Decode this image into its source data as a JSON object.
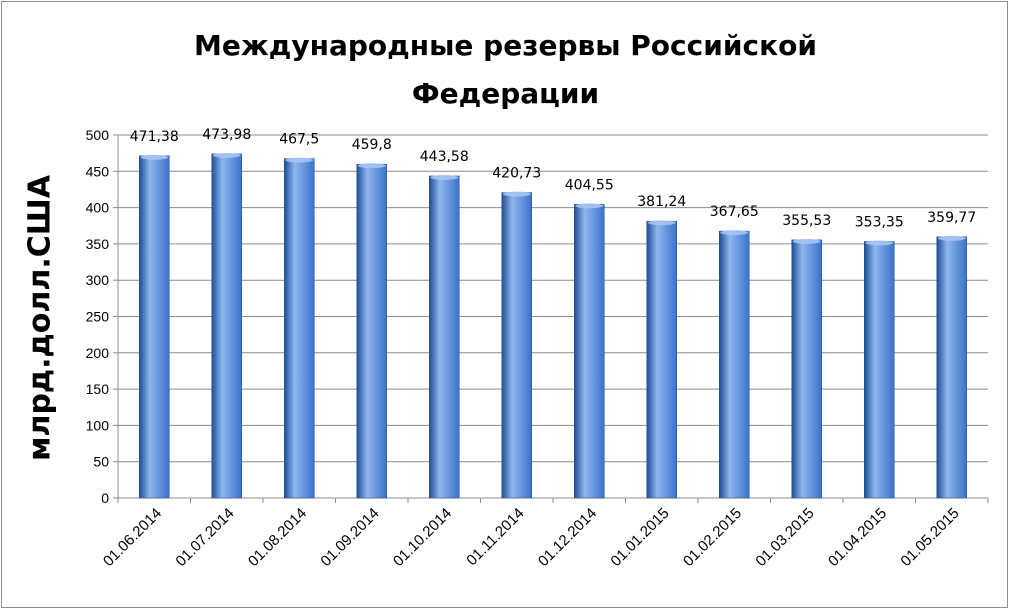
{
  "chart_data": {
    "type": "bar",
    "title_line1": "Международные резервы Российской",
    "title_line2": "Федерации",
    "xlabel": "",
    "ylabel": "млрд.долл.США",
    "categories": [
      "01.06.2014",
      "01.07.2014",
      "01.08.2014",
      "01.09.2014",
      "01.10.2014",
      "01.11.2014",
      "01.12.2014",
      "01.01.2015",
      "01.02.2015",
      "01.03.2015",
      "01.04.2015",
      "01.05.2015"
    ],
    "values": [
      471.38,
      473.98,
      467.5,
      459.8,
      443.58,
      420.73,
      404.55,
      381.24,
      367.65,
      355.53,
      353.35,
      359.77
    ],
    "value_labels": [
      "471,38",
      "473,98",
      "467,5",
      "459,8",
      "443,58",
      "420,73",
      "404,55",
      "381,24",
      "367,65",
      "355,53",
      "353,35",
      "359,77"
    ],
    "ylim": [
      0,
      500
    ],
    "yticks": [
      0,
      50,
      100,
      150,
      200,
      250,
      300,
      350,
      400,
      450,
      500
    ],
    "grid": true,
    "legend": "none",
    "bar_color": "#3a72c9",
    "bar_color_dark": "#1f4e96",
    "bar_color_light": "#8fb6ee"
  }
}
